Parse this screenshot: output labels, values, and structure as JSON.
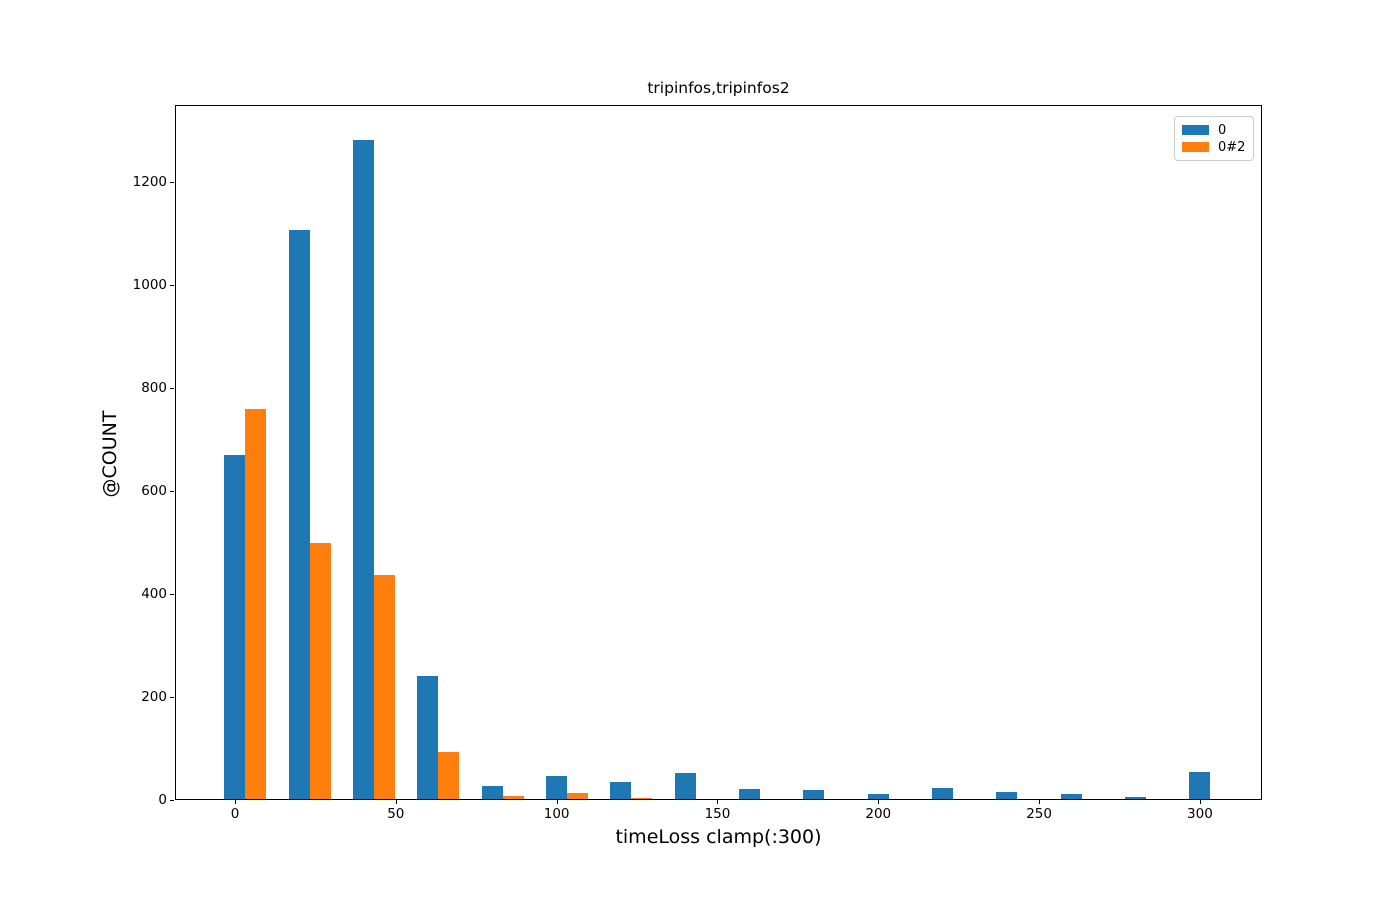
{
  "figure": {
    "title": "tripinfos,tripinfos2",
    "xlabel": "timeLoss clamp(:300)",
    "ylabel": "@COUNT"
  },
  "chart_data": {
    "type": "bar",
    "title": "tripinfos,tripinfos2",
    "xlabel": "timeLoss clamp(:300)",
    "ylabel": "@COUNT",
    "categories": [
      0,
      20,
      40,
      60,
      80,
      100,
      120,
      140,
      160,
      180,
      200,
      220,
      240,
      260,
      280,
      300
    ],
    "series": [
      {
        "name": "0",
        "color": "#1f77b4",
        "values": [
          668,
          1105,
          1280,
          238,
          25,
          45,
          34,
          50,
          19,
          17,
          10,
          21,
          13,
          10,
          4,
          53
        ]
      },
      {
        "name": "0#2",
        "color": "#ff7f0e",
        "values": [
          757,
          498,
          436,
          92,
          5,
          11,
          2,
          0,
          0,
          0,
          0,
          0,
          0,
          0,
          0,
          0
        ]
      }
    ],
    "x_ticks": [
      0,
      50,
      100,
      150,
      200,
      250,
      300
    ],
    "y_ticks": [
      0,
      200,
      400,
      600,
      800,
      1000,
      1200
    ],
    "xlim": [
      -18.65,
      319.3
    ],
    "ylim": [
      0,
      1350
    ],
    "legend_position": "upper right",
    "grid": false,
    "axis_color": "#000000",
    "legend_border_color": "#cccccc"
  }
}
